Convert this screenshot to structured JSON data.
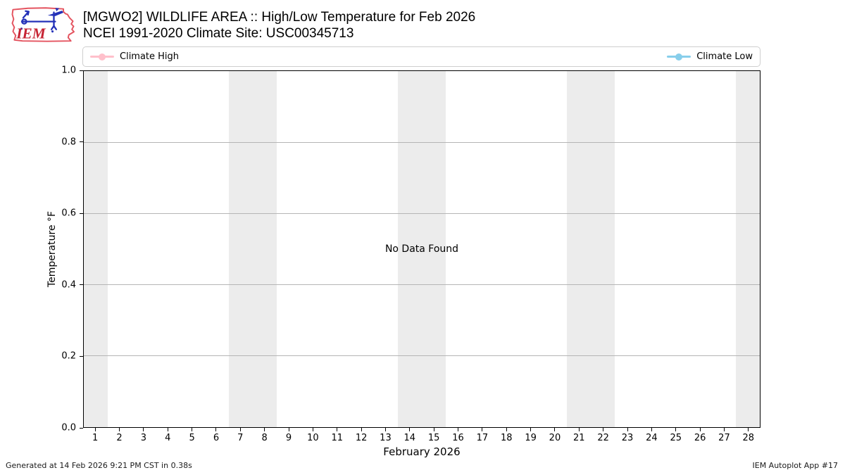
{
  "header": {
    "title_line1": "[MGWO2] WILDLIFE AREA :: High/Low Temperature for Feb 2026",
    "title_line2": "NCEI 1991-2020 Climate Site: USC00345713",
    "logo_text": "IEM"
  },
  "legend": {
    "items": [
      {
        "label": "Climate High",
        "color": "#ffc0cb"
      },
      {
        "label": "Climate Low",
        "color": "#87ceeb"
      }
    ]
  },
  "chart_data": {
    "type": "line",
    "title": "[MGWO2] WILDLIFE AREA :: High/Low Temperature for Feb 2026",
    "subtitle": "NCEI 1991-2020 Climate Site: USC00345713",
    "xlabel": "February 2026",
    "ylabel": "Temperature °F",
    "xlim": [
      0.5,
      28.5
    ],
    "ylim": [
      0.0,
      1.0
    ],
    "x_ticks": [
      1,
      2,
      3,
      4,
      5,
      6,
      7,
      8,
      9,
      10,
      11,
      12,
      13,
      14,
      15,
      16,
      17,
      18,
      19,
      20,
      21,
      22,
      23,
      24,
      25,
      26,
      27,
      28
    ],
    "y_ticks": [
      0.0,
      0.2,
      0.4,
      0.6,
      0.8,
      1.0
    ],
    "series": [
      {
        "name": "Climate High",
        "color": "#ffc0cb",
        "x": [],
        "values": []
      },
      {
        "name": "Climate Low",
        "color": "#87ceeb",
        "x": [],
        "values": []
      }
    ],
    "annotation": "No Data Found",
    "weekend_bands": [
      [
        0.5,
        1.5
      ],
      [
        6.5,
        8.5
      ],
      [
        13.5,
        15.5
      ],
      [
        20.5,
        22.5
      ],
      [
        27.5,
        28.5
      ]
    ],
    "band_color": "#ececec",
    "grid": "horizontal",
    "legend_position": "top, spread left/right"
  },
  "plot": {
    "no_data_text": "No Data Found"
  },
  "axes": {
    "xlabel": "February 2026",
    "ylabel": "Temperature °F"
  },
  "footer": {
    "left": "Generated at 14 Feb 2026 9:21 PM CST in 0.38s",
    "right": "IEM Autoplot App #17"
  }
}
